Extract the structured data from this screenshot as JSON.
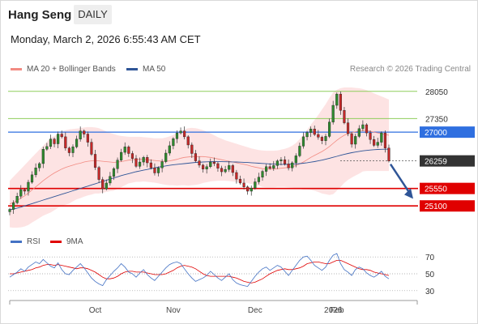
{
  "header": {
    "instrument": "Hang Seng",
    "timeframe": "DAILY",
    "datetime": "Monday, March 2, 2026 6:55:43 AM CET"
  },
  "legend": {
    "bollinger": {
      "label": "MA 20 + Bollinger Bands",
      "color": "#f28b82"
    },
    "ma50": {
      "label": "MA 50",
      "color": "#2f5597"
    },
    "rsi": {
      "label": "RSI",
      "color": "#4472c4"
    },
    "rsi_ma": {
      "label": "9MA",
      "color": "#e00000"
    }
  },
  "credit": "Research © 2026 Trading Central",
  "chart_data": {
    "type": "candlestick",
    "x_labels": [
      "Oct",
      "Nov",
      "Dec",
      "2026",
      "Feb"
    ],
    "price_levels": [
      {
        "value": 28050,
        "label": "28050",
        "kind": "resistance",
        "color": "#8fce5c"
      },
      {
        "value": 27350,
        "label": "27350",
        "kind": "resistance",
        "color": "#8fce5c"
      },
      {
        "value": 27000,
        "label": "27000",
        "kind": "pivot",
        "color": "#2f6fe0"
      },
      {
        "value": 26259,
        "label": "26259",
        "kind": "last",
        "color": "#333333"
      },
      {
        "value": 25550,
        "label": "25550",
        "kind": "support",
        "color": "#e00000"
      },
      {
        "value": 25100,
        "label": "25100",
        "kind": "support",
        "color": "#e00000"
      }
    ],
    "forecast_arrow": {
      "from": 26259,
      "to": 25200,
      "direction": "down"
    },
    "closes": [
      25010,
      25180,
      25350,
      25520,
      25480,
      25710,
      25900,
      26080,
      26190,
      26560,
      26630,
      26820,
      26700,
      26950,
      26880,
      26590,
      26470,
      26620,
      26820,
      27030,
      26950,
      26740,
      26430,
      26090,
      25780,
      25540,
      25690,
      25860,
      26060,
      26280,
      26480,
      26620,
      26450,
      26320,
      26120,
      26230,
      26350,
      26210,
      26080,
      25950,
      26080,
      26240,
      26460,
      26650,
      26830,
      26980,
      27030,
      26880,
      26670,
      26450,
      26260,
      26150,
      26050,
      26110,
      26230,
      26190,
      26070,
      25980,
      26040,
      26140,
      25960,
      25790,
      25690,
      25590,
      25480,
      25560,
      25720,
      25840,
      25990,
      26110,
      26070,
      26140,
      26260,
      26290,
      26180,
      26080,
      26210,
      26390,
      26640,
      26880,
      26990,
      27080,
      26940,
      26870,
      26780,
      26890,
      27260,
      27690,
      27980,
      27560,
      27240,
      26960,
      26690,
      26890,
      27090,
      27190,
      26980,
      26810,
      26660,
      26740,
      26980,
      26590,
      26259
    ],
    "ma20": [
      25150,
      25190,
      25240,
      25300,
      25360,
      25430,
      25510,
      25590,
      25670,
      25750,
      25820,
      25890,
      25950,
      26000,
      26050,
      26090,
      26120,
      26150,
      26180,
      26200,
      26230,
      26250,
      26260,
      26270,
      26260,
      26250,
      26240,
      26230,
      26220,
      26230,
      26240,
      26260,
      26280,
      26290,
      26300,
      26300,
      26300,
      26290,
      26280,
      26270,
      26260,
      26250,
      26250,
      26260,
      26280,
      26300,
      26330,
      26350,
      26360,
      26370,
      26370,
      26370,
      26370,
      26360,
      26350,
      26330,
      26310,
      26290,
      26270,
      26250,
      26230,
      26210,
      26190,
      26170,
      26150,
      26120,
      26100,
      26080,
      26060,
      26050,
      26050,
      26050,
      26060,
      26070,
      26080,
      26090,
      26110,
      26140,
      26180,
      26230,
      26290,
      26350,
      26400,
      26450,
      26500,
      26560,
      26630,
      26710,
      26790,
      26860,
      26920,
      26960,
      26990,
      27010,
      27030,
      27050,
      27040,
      27020,
      27000,
      26980,
      26960,
      26940,
      26920
    ],
    "bb_upper": [
      25750,
      25850,
      25950,
      26050,
      26150,
      26250,
      26350,
      26450,
      26550,
      26650,
      26750,
      26850,
      26900,
      26950,
      27000,
      27050,
      27070,
      27080,
      27090,
      27100,
      27120,
      27130,
      27130,
      27120,
      27100,
      27060,
      27020,
      26980,
      26950,
      26920,
      26900,
      26890,
      26880,
      26880,
      26880,
      26880,
      26870,
      26860,
      26850,
      26840,
      26840,
      26840,
      26860,
      26890,
      26930,
      26980,
      27030,
      27070,
      27100,
      27110,
      27100,
      27080,
      27050,
      27010,
      26970,
      26920,
      26870,
      26830,
      26790,
      26760,
      26730,
      26700,
      26670,
      26640,
      26610,
      26580,
      26560,
      26540,
      26530,
      26520,
      26520,
      26520,
      26530,
      26550,
      26570,
      26600,
      26650,
      26720,
      26820,
      26940,
      27060,
      27190,
      27310,
      27440,
      27580,
      27720,
      27880,
      28020,
      28090,
      28130,
      28150,
      28150,
      28150,
      28140,
      28130,
      28110,
      28080,
      28040,
      28000,
      27960,
      27920,
      27880,
      27840
    ],
    "bb_lower": [
      24550,
      24540,
      24540,
      24550,
      24570,
      24610,
      24670,
      24730,
      24790,
      24850,
      24890,
      24930,
      24990,
      25050,
      25100,
      25130,
      25160,
      25220,
      25270,
      25300,
      25340,
      25370,
      25390,
      25420,
      25420,
      25440,
      25460,
      25480,
      25490,
      25540,
      25580,
      25630,
      25680,
      25700,
      25720,
      25720,
      25730,
      25720,
      25710,
      25700,
      25680,
      25660,
      25640,
      25630,
      25630,
      25620,
      25630,
      25630,
      25620,
      25630,
      25640,
      25660,
      25690,
      25710,
      25730,
      25740,
      25750,
      25750,
      25750,
      25740,
      25730,
      25720,
      25710,
      25700,
      25690,
      25660,
      25640,
      25620,
      25590,
      25580,
      25580,
      25580,
      25590,
      25590,
      25590,
      25580,
      25570,
      25560,
      25540,
      25520,
      25520,
      25510,
      25490,
      25460,
      25420,
      25400,
      25380,
      25400,
      25490,
      25590,
      25690,
      25770,
      25830,
      25880,
      25930,
      25990,
      26000,
      26000,
      26000,
      26000,
      26000,
      26000,
      26000
    ],
    "ma50": [
      25000,
      25020,
      25045,
      25070,
      25100,
      25130,
      25160,
      25190,
      25220,
      25250,
      25280,
      25310,
      25340,
      25370,
      25400,
      25430,
      25460,
      25490,
      25520,
      25550,
      25580,
      25610,
      25640,
      25670,
      25700,
      25730,
      25760,
      25790,
      25820,
      25850,
      25880,
      25905,
      25930,
      25955,
      25980,
      26000,
      26020,
      26040,
      26060,
      26080,
      26100,
      26115,
      26130,
      26145,
      26160,
      26170,
      26180,
      26190,
      26200,
      26210,
      26220,
      26225,
      26230,
      26235,
      26240,
      26240,
      26240,
      26240,
      26238,
      26236,
      26233,
      26230,
      26226,
      26222,
      26218,
      26212,
      26206,
      26200,
      26194,
      26188,
      26182,
      26176,
      26172,
      26170,
      26170,
      26172,
      26176,
      26182,
      26190,
      26200,
      26212,
      26226,
      26242,
      26260,
      26280,
      26302,
      26326,
      26352,
      26378,
      26404,
      26428,
      26450,
      26470,
      26488,
      26504,
      26518,
      26530,
      26540,
      26548,
      26554,
      26558,
      26560,
      26560
    ],
    "rsi": [
      46,
      49,
      52,
      56,
      53,
      58,
      61,
      64,
      62,
      67,
      63,
      59,
      57,
      63,
      55,
      50,
      49,
      54,
      58,
      62,
      57,
      51,
      45,
      41,
      38,
      36,
      43,
      48,
      53,
      57,
      62,
      58,
      52,
      50,
      46,
      51,
      55,
      49,
      45,
      42,
      47,
      52,
      57,
      61,
      63,
      64,
      62,
      56,
      50,
      45,
      41,
      43,
      45,
      48,
      53,
      49,
      45,
      42,
      46,
      50,
      43,
      39,
      37,
      36,
      35,
      41,
      47,
      52,
      56,
      58,
      54,
      57,
      60,
      58,
      53,
      48,
      54,
      60,
      66,
      70,
      71,
      66,
      60,
      57,
      54,
      58,
      66,
      72,
      74,
      62,
      55,
      52,
      48,
      55,
      58,
      56,
      51,
      48,
      46,
      49,
      53,
      47,
      44
    ],
    "rsi_ma": [
      50,
      50,
      51,
      52,
      53,
      54,
      55,
      57,
      58,
      60,
      61,
      61,
      60,
      61,
      60,
      59,
      58,
      57,
      56,
      57,
      57,
      56,
      54,
      52,
      49,
      46,
      44,
      44,
      45,
      47,
      50,
      52,
      53,
      53,
      52,
      52,
      52,
      51,
      50,
      49,
      49,
      49,
      50,
      52,
      54,
      57,
      59,
      60,
      59,
      58,
      56,
      53,
      50,
      48,
      47,
      47,
      47,
      47,
      47,
      47,
      46,
      45,
      43,
      41,
      40,
      39,
      40,
      42,
      44,
      47,
      50,
      52,
      54,
      55,
      56,
      55,
      55,
      56,
      57,
      59,
      62,
      63,
      64,
      64,
      63,
      62,
      62,
      64,
      66,
      66,
      64,
      62,
      60,
      58,
      56,
      55,
      55,
      54,
      52,
      51,
      50,
      49,
      48
    ],
    "rsi_levels": [
      70,
      50,
      30
    ],
    "price_ylim": [
      24500,
      28400
    ],
    "rsi_ylim": [
      25,
      75
    ]
  }
}
